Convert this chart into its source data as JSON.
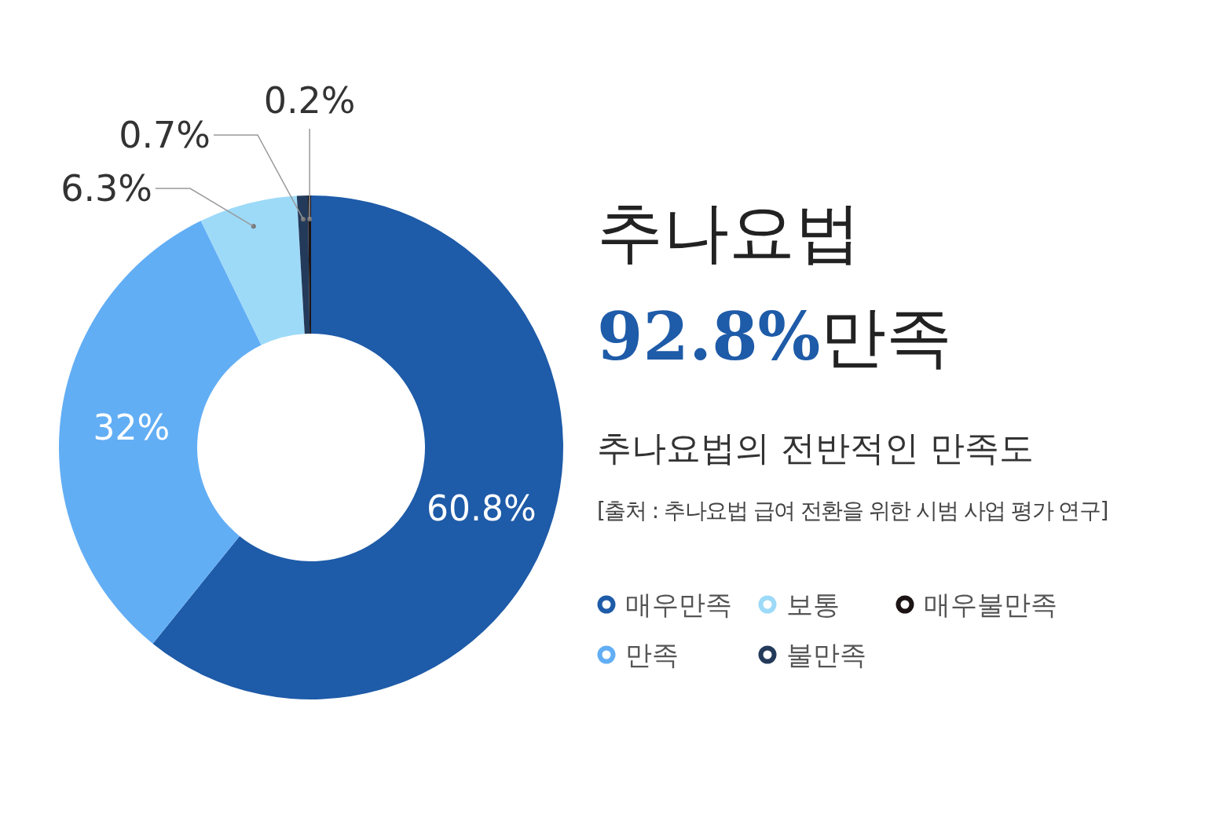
{
  "chart_data": {
    "type": "donut",
    "title": "추나요법",
    "subtitle": "추나요법의 전반적인 만족도",
    "annotations": [
      "92.8%만족",
      "[출처 : 추나요법 급여 전환을 위한 시범 사업 평가 연구]"
    ],
    "categories": [
      "매우만족",
      "만족",
      "보통",
      "불만족",
      "매우불만족"
    ],
    "values": [
      60.8,
      32,
      6.3,
      0.7,
      0.2
    ],
    "colors": [
      "#1e5ba8",
      "#62aef5",
      "#9ddaf8",
      "#233a5a",
      "#1c1414"
    ],
    "value_labels": [
      "60.8%",
      "32%",
      "6.3%",
      "0.7%",
      "0.2%"
    ],
    "legend": "right"
  }
}
